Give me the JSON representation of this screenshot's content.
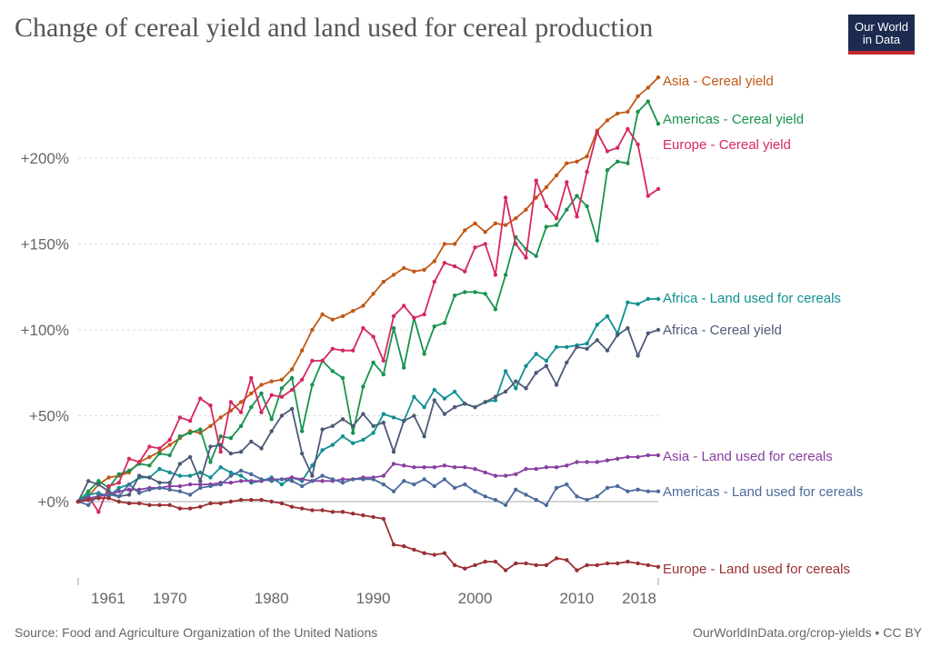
{
  "title": "Change of cereal yield and land used for cereal production",
  "logo": {
    "line1": "Our World",
    "line2": "in Data"
  },
  "footer": {
    "source": "Source: Food and Agriculture Organization of the United Nations",
    "credit": "OurWorldInData.org/crop-yields • CC BY"
  },
  "chart_data": {
    "type": "line",
    "title": "Change of cereal yield and land used for cereal production",
    "xlabel": "",
    "ylabel": "",
    "x_range": [
      1961,
      2018
    ],
    "xlim": [
      1961,
      2018
    ],
    "ylim": [
      -40,
      250
    ],
    "x_ticks": [
      "1961",
      "1970",
      "1980",
      "1990",
      "2000",
      "2010",
      "2018"
    ],
    "y_ticks": [
      {
        "value": 0,
        "label": "+0%"
      },
      {
        "value": 50,
        "label": "+50%"
      },
      {
        "value": 100,
        "label": "+100%"
      },
      {
        "value": 150,
        "label": "+150%"
      },
      {
        "value": 200,
        "label": "+200%"
      }
    ],
    "grid": "horizontal dashed",
    "series": [
      {
        "name": "Asia - Cereal yield",
        "color": "#c05917",
        "values": [
          0,
          3,
          10,
          14,
          15,
          17,
          23,
          26,
          29,
          33,
          37,
          41,
          40,
          44,
          49,
          53,
          58,
          63,
          68,
          70,
          71,
          77,
          88,
          100,
          109,
          106,
          108,
          111,
          114,
          121,
          128,
          132,
          136,
          134,
          135,
          140,
          150,
          150,
          158,
          162,
          157,
          162,
          161,
          165,
          170,
          177,
          183,
          190,
          197,
          198,
          201,
          216,
          222,
          226,
          227,
          236,
          241,
          247
        ]
      },
      {
        "name": "Americas - Cereal yield",
        "color": "#18924d",
        "values": [
          0,
          6,
          12,
          8,
          16,
          18,
          22,
          21,
          28,
          27,
          38,
          40,
          42,
          23,
          38,
          37,
          44,
          55,
          63,
          48,
          66,
          72,
          41,
          68,
          82,
          76,
          72,
          40,
          67,
          81,
          74,
          101,
          78,
          107,
          86,
          102,
          104,
          120,
          122,
          122,
          121,
          112,
          132,
          154,
          147,
          143,
          160,
          161,
          170,
          178,
          172,
          152,
          193,
          198,
          197,
          227,
          233,
          220
        ]
      },
      {
        "name": "Europe - Cereal yield",
        "color": "#d5295e",
        "values": [
          0,
          3,
          -6,
          9,
          11,
          25,
          23,
          32,
          31,
          36,
          49,
          47,
          60,
          56,
          29,
          58,
          52,
          72,
          52,
          62,
          61,
          65,
          71,
          82,
          82,
          89,
          88,
          88,
          101,
          96,
          82,
          108,
          114,
          107,
          109,
          128,
          139,
          137,
          134,
          148,
          150,
          132,
          177,
          150,
          142,
          187,
          172,
          165,
          186,
          166,
          192,
          215,
          204,
          206,
          217,
          208,
          178,
          182
        ]
      },
      {
        "name": "Africa - Land used for cereals",
        "color": "#109092",
        "values": [
          0,
          4,
          5,
          3,
          8,
          10,
          14,
          14,
          19,
          17,
          15,
          15,
          17,
          14,
          20,
          17,
          15,
          11,
          12,
          14,
          10,
          14,
          12,
          21,
          30,
          33,
          38,
          34,
          36,
          40,
          51,
          49,
          47,
          61,
          55,
          65,
          60,
          64,
          57,
          55,
          58,
          59,
          76,
          66,
          79,
          86,
          82,
          90,
          90,
          91,
          92,
          103,
          108,
          98,
          116,
          115,
          118,
          118
        ]
      },
      {
        "name": "Africa - Cereal yield",
        "color": "#4c5a78",
        "values": [
          0,
          12,
          10,
          6,
          3,
          4,
          15,
          14,
          11,
          11,
          22,
          26,
          12,
          32,
          33,
          28,
          29,
          35,
          31,
          41,
          50,
          54,
          28,
          15,
          42,
          44,
          48,
          44,
          51,
          44,
          46,
          29,
          47,
          50,
          38,
          59,
          51,
          55,
          57,
          55,
          58,
          61,
          64,
          70,
          66,
          75,
          79,
          68,
          81,
          90,
          89,
          94,
          88,
          97,
          101,
          85,
          98,
          100
        ]
      },
      {
        "name": "Asia - Land used for cereals",
        "color": "#883fa1",
        "values": [
          0,
          2,
          3,
          4,
          6,
          7,
          7,
          8,
          8,
          9,
          9,
          10,
          10,
          10,
          11,
          11,
          12,
          12,
          12,
          13,
          13,
          14,
          13,
          12,
          12,
          12,
          13,
          13,
          14,
          14,
          15,
          22,
          21,
          20,
          20,
          20,
          21,
          20,
          20,
          19,
          17,
          15,
          15,
          16,
          19,
          19,
          20,
          20,
          21,
          23,
          23,
          23,
          24,
          25,
          26,
          26,
          27,
          27
        ]
      },
      {
        "name": "Americas - Land used for cereals",
        "color": "#4c6a9c",
        "values": [
          0,
          -2,
          4,
          4,
          3,
          10,
          5,
          7,
          8,
          7,
          6,
          4,
          8,
          9,
          10,
          15,
          18,
          16,
          13,
          12,
          13,
          12,
          9,
          12,
          15,
          13,
          11,
          13,
          13,
          13,
          10,
          6,
          12,
          10,
          13,
          9,
          13,
          8,
          10,
          6,
          3,
          1,
          -2,
          7,
          4,
          1,
          -2,
          8,
          10,
          3,
          1,
          3,
          8,
          9,
          6,
          7,
          6,
          6
        ]
      },
      {
        "name": "Europe - Land used for cereals",
        "color": "#9a3034",
        "values": [
          0,
          1,
          2,
          2,
          0,
          -1,
          -1,
          -2,
          -2,
          -2,
          -4,
          -4,
          -3,
          -1,
          -1,
          0,
          1,
          1,
          1,
          0,
          -1,
          -3,
          -4,
          -5,
          -5,
          -6,
          -6,
          -7,
          -8,
          -9,
          -10,
          -25,
          -26,
          -28,
          -30,
          -31,
          -30,
          -37,
          -39,
          -37,
          -35,
          -35,
          -40,
          -36,
          -36,
          -37,
          -37,
          -33,
          -34,
          -40,
          -37,
          -37,
          -36,
          -36,
          -35,
          -36,
          -37,
          -38
        ]
      }
    ]
  }
}
